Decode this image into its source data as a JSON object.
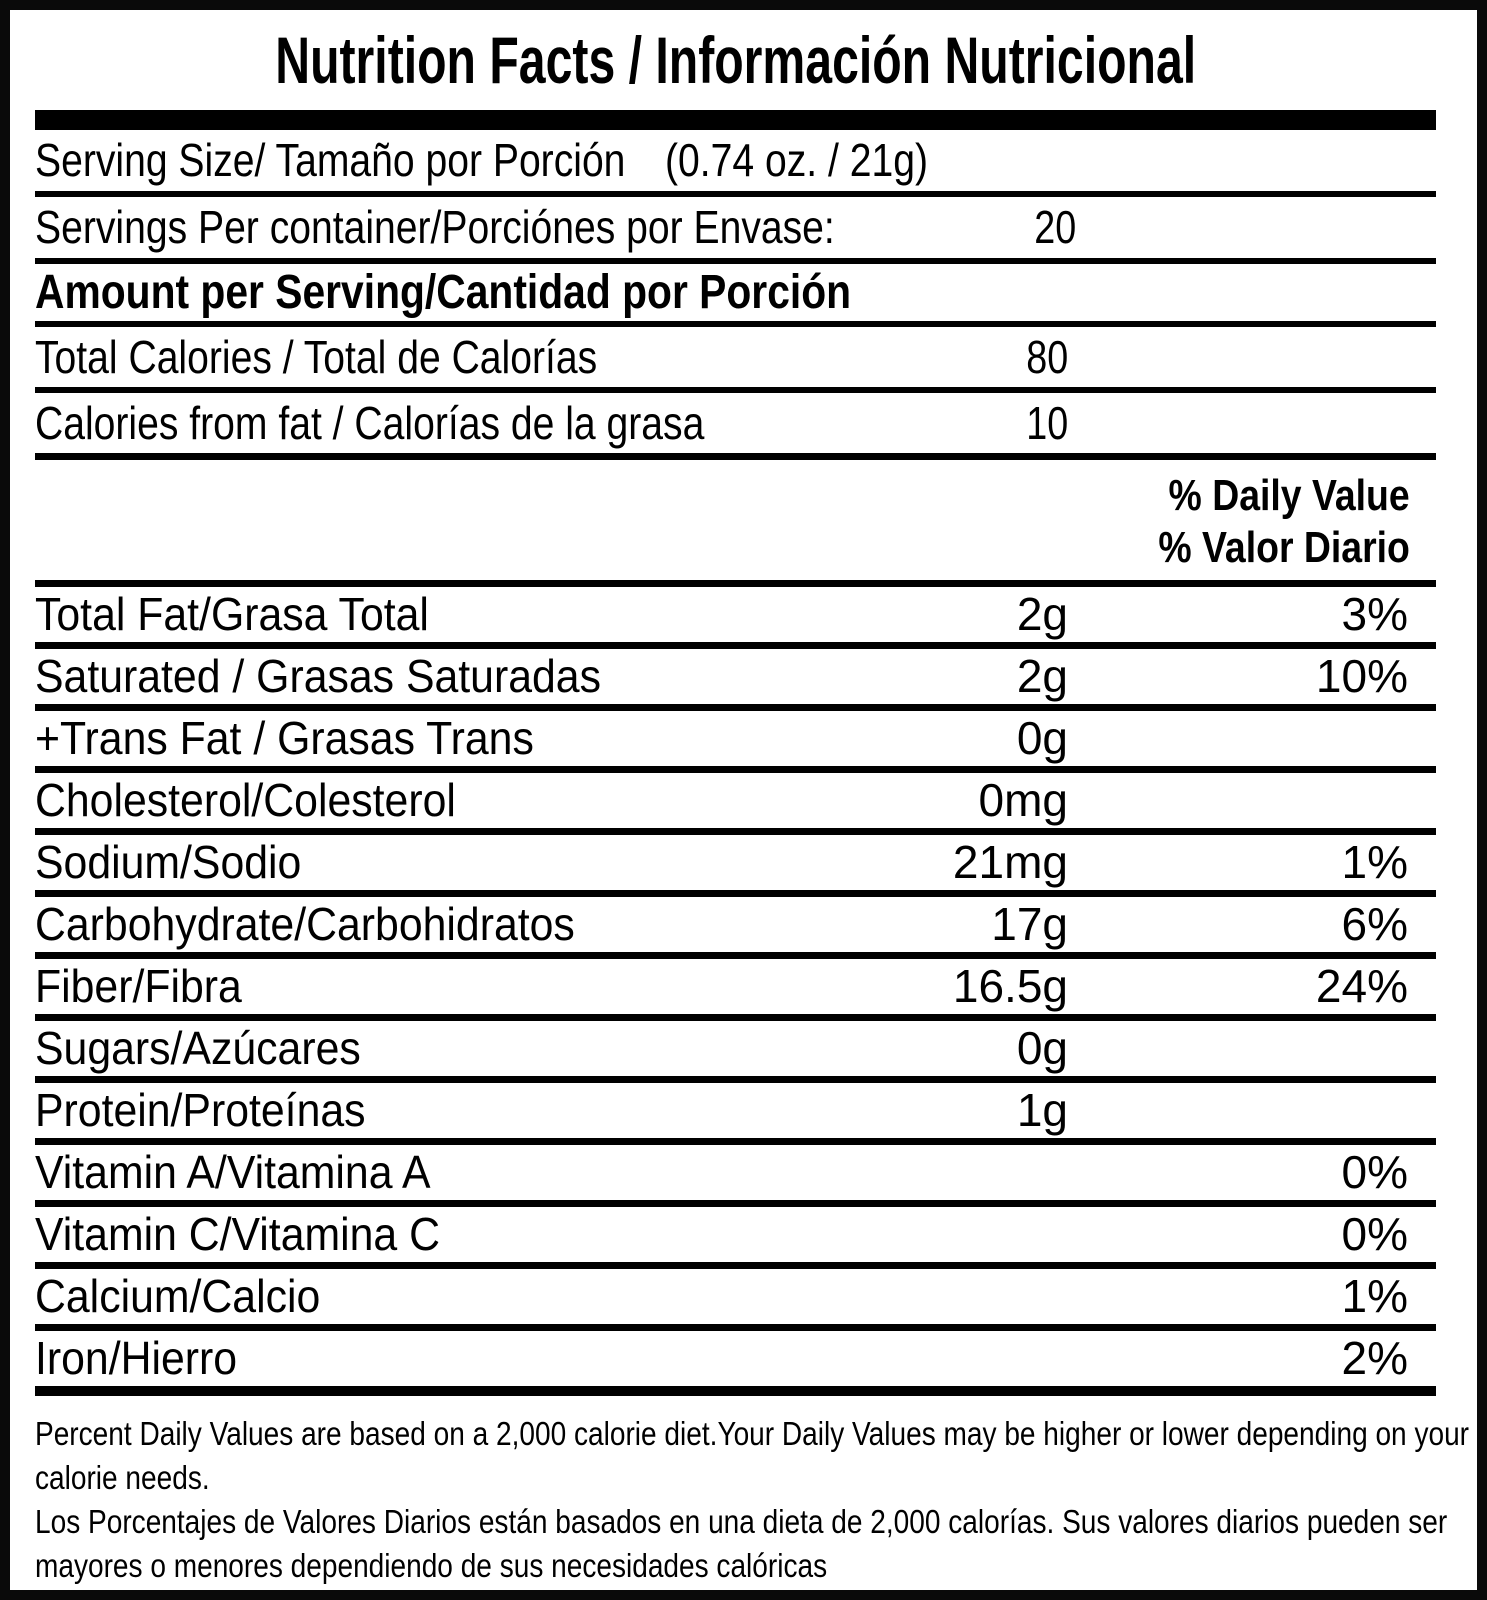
{
  "title": "Nutrition Facts / Información Nutricional",
  "serving": {
    "size_label": "Serving Size/ Tamaño por Porción",
    "size_value": "(0.74 oz. / 21g)",
    "per_container_label": "Servings Per container/Porciónes por Envase:",
    "per_container_value": "20",
    "amount_header": "Amount per Serving/Cantidad por Porción"
  },
  "calories": [
    {
      "label": "Total Calories / Total de Calorías",
      "value": "80"
    },
    {
      "label": "Calories from fat / Calorías de la grasa",
      "value": "10"
    }
  ],
  "daily_value_header": {
    "en": "% Daily Value",
    "es": "% Valor Diario"
  },
  "nutrients": [
    {
      "label": "Total Fat/Grasa Total",
      "amount": "2g",
      "dv": "3%"
    },
    {
      "label": "Saturated / Grasas Saturadas",
      "amount": "2g",
      "dv": "10%"
    },
    {
      "label": "+Trans Fat / Grasas Trans",
      "amount": "0g",
      "dv": ""
    },
    {
      "label": "Cholesterol/Colesterol",
      "amount": "0mg",
      "dv": ""
    },
    {
      "label": "Sodium/Sodio",
      "amount": "21mg",
      "dv": "1%"
    },
    {
      "label": "Carbohydrate/Carbohidratos",
      "amount": "17g",
      "dv": "6%"
    },
    {
      "label": "Fiber/Fibra",
      "amount": "16.5g",
      "dv": "24%"
    },
    {
      "label": "Sugars/Azúcares",
      "amount": "0g",
      "dv": ""
    },
    {
      "label": "Protein/Proteínas",
      "amount": "1g",
      "dv": ""
    },
    {
      "label": "Vitamin A/Vitamina A",
      "amount": "",
      "dv": "0%"
    },
    {
      "label": "Vitamin C/Vitamina C",
      "amount": "",
      "dv": "0%"
    },
    {
      "label": "Calcium/Calcio",
      "amount": "",
      "dv": "1%"
    },
    {
      "label": "Iron/Hierro",
      "amount": "",
      "dv": "2%"
    }
  ],
  "footnote": {
    "lines": [
      "Percent Daily Values are based on a 2,000 calorie diet.Your Daily Values may be higher or lower depending on your",
      "calorie needs.",
      "Los Porcentajes de Valores Diarios están basados en una dieta de 2,000 calorías. Sus valores diarios pueden ser",
      "mayores o menores dependiendo de sus necesidades calóricas"
    ]
  },
  "colors": {
    "text": "#000000",
    "background": "#ffffff"
  }
}
